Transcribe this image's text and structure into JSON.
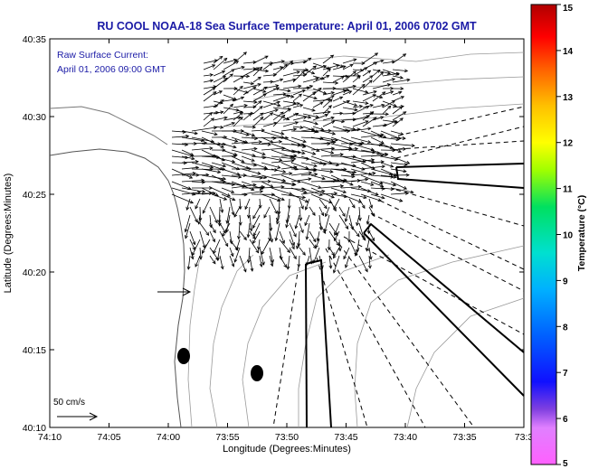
{
  "chart_data": {
    "type": "vector-field-map",
    "title": "RU COOL  NOAA-18  Sea Surface Temperature:  April 01, 2006 0702 GMT",
    "annotation_lines": [
      "Raw Surface Current:",
      "April 01, 2006 09:00 GMT"
    ],
    "xlabel": "Longitude (Degrees:Minutes)",
    "ylabel": "Latitude (Degrees:Minutes)",
    "x_ticks": [
      "74:10",
      "74:05",
      "74:00",
      "73:55",
      "73:50",
      "73:45",
      "73:40",
      "73:35",
      "73:3"
    ],
    "y_ticks": [
      "40:35",
      "40:30",
      "40:25",
      "40:20",
      "40:15",
      "40:10"
    ],
    "xlim_minutes_west": [
      10,
      30
    ],
    "ylim_minutes_north": [
      10,
      35
    ],
    "scale_label": "50 cm/s",
    "colorbar": {
      "label": "Temperature (°C)",
      "ticks": [
        "15",
        "14",
        "13",
        "12",
        "11",
        "10",
        "9",
        "8",
        "7",
        "6",
        "5"
      ],
      "range": [
        5,
        15
      ]
    },
    "markers": [
      {
        "lon": "73:59.6",
        "lat": "40:14.4"
      },
      {
        "lon": "73:52.4",
        "lat": "40:13.4"
      }
    ]
  },
  "colors": {
    "title": "#1a1aa6",
    "annotation": "#1a1aa6",
    "vectors": "#000000",
    "contours": "#999999",
    "land": "#ffffff"
  }
}
